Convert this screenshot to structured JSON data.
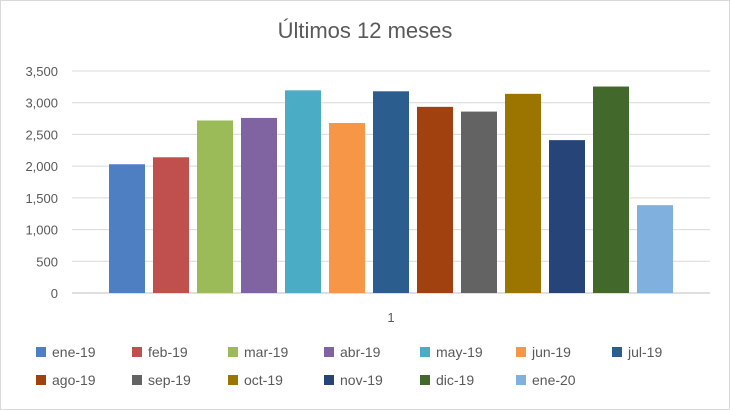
{
  "chart_data": {
    "type": "bar",
    "title": "Últimos 12 meses",
    "xlabel": "",
    "ylabel": "",
    "categories": [
      "1"
    ],
    "ylim": [
      0,
      3500
    ],
    "yticks": [
      "0",
      "500",
      "1,000",
      "1,500",
      "2,000",
      "2,500",
      "3,000",
      "3,500"
    ],
    "ytick_values": [
      0,
      500,
      1000,
      1500,
      2000,
      2500,
      3000,
      3500
    ],
    "grid": true,
    "legend_position": "bottom",
    "series": [
      {
        "name": "ene-19",
        "values": [
          2030
        ],
        "color": "#4e7fc3"
      },
      {
        "name": "feb-19",
        "values": [
          2140
        ],
        "color": "#c0504d"
      },
      {
        "name": "mar-19",
        "values": [
          2720
        ],
        "color": "#9bbb59"
      },
      {
        "name": "abr-19",
        "values": [
          2760
        ],
        "color": "#8064a2"
      },
      {
        "name": "may-19",
        "values": [
          3195
        ],
        "color": "#4bacc6"
      },
      {
        "name": "jun-19",
        "values": [
          2680
        ],
        "color": "#f79646"
      },
      {
        "name": "jul-19",
        "values": [
          3180
        ],
        "color": "#2c5d8f"
      },
      {
        "name": "ago-19",
        "values": [
          2935
        ],
        "color": "#a0410f"
      },
      {
        "name": "sep-19",
        "values": [
          2860
        ],
        "color": "#636363"
      },
      {
        "name": "oct-19",
        "values": [
          3140
        ],
        "color": "#9c7400"
      },
      {
        "name": "nov-19",
        "values": [
          2410
        ],
        "color": "#264478"
      },
      {
        "name": "dic-19",
        "values": [
          3255
        ],
        "color": "#43682b"
      },
      {
        "name": "ene-20",
        "values": [
          1385
        ],
        "color": "#7fb0de"
      }
    ]
  }
}
